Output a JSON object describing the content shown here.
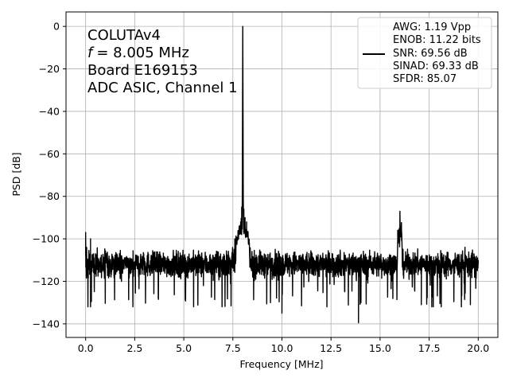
{
  "chart_data": {
    "type": "line",
    "xlabel": "Frequency [MHz]",
    "ylabel": "PSD [dB]",
    "xlim": [
      -1,
      21
    ],
    "ylim": [
      -146.4,
      6.8
    ],
    "xticks": [
      0.0,
      2.5,
      5.0,
      7.5,
      10.0,
      12.5,
      15.0,
      17.5,
      20.0
    ],
    "xtick_labels": [
      "0.0",
      "2.5",
      "5.0",
      "7.5",
      "10.0",
      "12.5",
      "15.0",
      "17.5",
      "20.0"
    ],
    "yticks": [
      0,
      -20,
      -40,
      -60,
      -80,
      -100,
      -120,
      -140
    ],
    "ytick_labels": [
      "0",
      "−20",
      "−40",
      "−60",
      "−80",
      "−100",
      "−120",
      "−140"
    ],
    "grid": true,
    "annotations": [
      "COLUTAv4",
      "= 8.005 MHz",
      "Board E169153",
      "ADC ASIC, Channel  1"
    ],
    "annotation_italic_prefix": "f",
    "legend": {
      "placement": "upper right",
      "lines": [
        "AWG: 1.19 Vpp",
        "ENOB: 11.22 bits",
        "SNR: 69.56 dB",
        "SINAD: 69.33 dB",
        "SFDR: 85.07"
      ]
    },
    "series": [
      {
        "color": "#000000",
        "noise_floor_db": -112,
        "noise_min_db": -140,
        "noise_max_db": -96,
        "points": [
          [
            0.0,
            -97
          ],
          [
            0.05,
            -104
          ],
          [
            0.15,
            -113
          ],
          [
            0.25,
            -100
          ],
          [
            7.6,
            -100
          ],
          [
            7.8,
            -97
          ],
          [
            7.9,
            -92
          ],
          [
            7.95,
            -85
          ],
          [
            7.98,
            -80
          ],
          [
            8.005,
            0
          ],
          [
            8.03,
            -80
          ],
          [
            8.06,
            -86
          ],
          [
            8.12,
            -90
          ],
          [
            8.2,
            -92
          ],
          [
            8.3,
            -100
          ],
          [
            15.9,
            -100
          ],
          [
            15.98,
            -95
          ],
          [
            16.01,
            -87
          ],
          [
            16.05,
            -96
          ],
          [
            16.1,
            -101
          ],
          [
            20.0,
            -110
          ]
        ],
        "dips": [
          [
            13.9,
            -139.5
          ],
          [
            10.0,
            -135
          ],
          [
            0.25,
            -132
          ],
          [
            17.1,
            -131
          ],
          [
            19.6,
            -131
          ]
        ]
      }
    ]
  }
}
